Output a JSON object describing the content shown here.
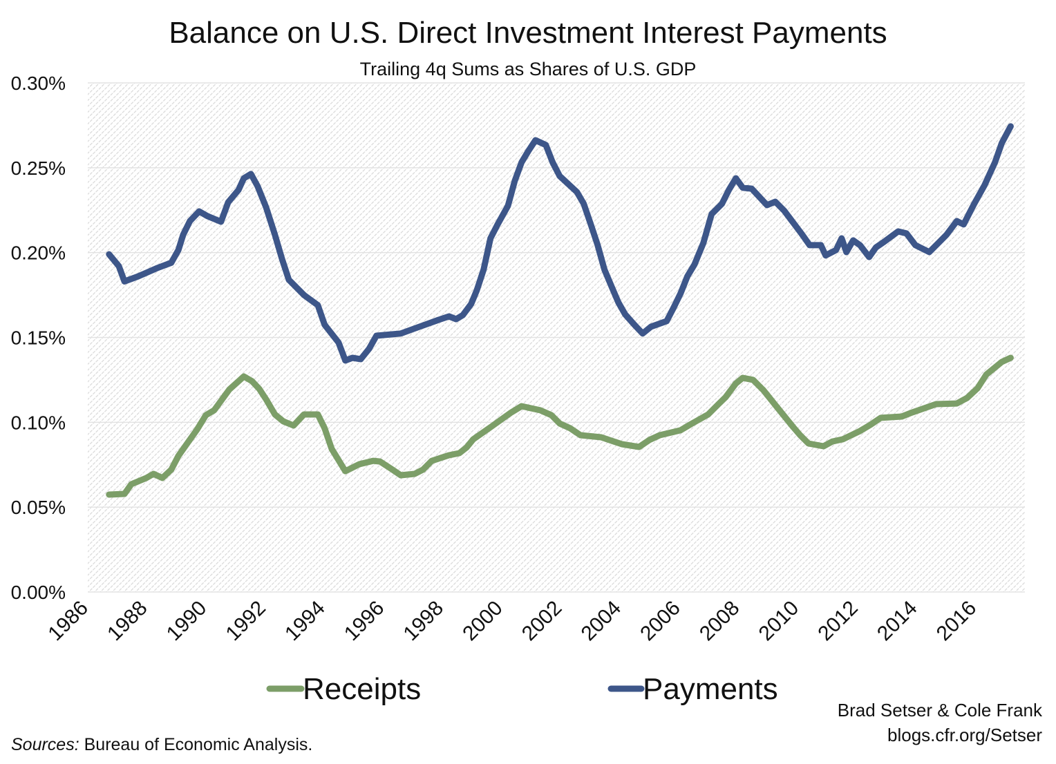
{
  "chart_data": {
    "type": "line",
    "title": "Balance on U.S. Direct Investment Interest Payments",
    "subtitle": "Trailing 4q Sums as Shares of U.S. GDP",
    "xlabel": "",
    "ylabel": "",
    "xlim": [
      1986,
      2017.65
    ],
    "ylim": [
      0,
      0.3
    ],
    "x_ticks": [
      1986,
      1988,
      1990,
      1992,
      1994,
      1996,
      1998,
      2000,
      2002,
      2004,
      2006,
      2008,
      2010,
      2012,
      2014,
      2016
    ],
    "y_ticks": [
      "0.00%",
      "0.05%",
      "0.10%",
      "0.15%",
      "0.20%",
      "0.25%",
      "0.30%"
    ],
    "y_tick_values": [
      0,
      0.05,
      0.1,
      0.15,
      0.2,
      0.25,
      0.3
    ],
    "grid": "horizontal",
    "legend_position": "bottom",
    "series": [
      {
        "name": "Receipts",
        "color": "#7c9e68",
        "x": [
          1986.72,
          1987.24,
          1987.47,
          1987.98,
          1988.22,
          1988.52,
          1988.82,
          1989.06,
          1989.34,
          1989.69,
          1989.99,
          1990.27,
          1990.78,
          1991.27,
          1991.55,
          1991.79,
          1992.02,
          1992.32,
          1992.6,
          1992.95,
          1993.3,
          1993.77,
          1994.0,
          1994.24,
          1994.7,
          1995.17,
          1995.64,
          1995.87,
          1996.22,
          1996.57,
          1997.04,
          1997.32,
          1997.62,
          1998.2,
          1998.55,
          1998.79,
          1999.02,
          1999.65,
          2000.3,
          2000.65,
          2001.28,
          2001.66,
          2001.94,
          2002.29,
          2002.64,
          2003.34,
          2004.04,
          2004.62,
          2004.97,
          2005.32,
          2006.02,
          2006.37,
          2006.95,
          2007.3,
          2007.54,
          2007.89,
          2008.12,
          2008.47,
          2008.82,
          2009.29,
          2009.82,
          2010.06,
          2010.34,
          2010.85,
          2011.15,
          2011.5,
          2012.08,
          2012.43,
          2012.78,
          2013.49,
          2013.84,
          2014.65,
          2015.35,
          2015.7,
          2016.05,
          2016.35,
          2016.87,
          2017.17
        ],
        "y": [
          0.0574,
          0.0578,
          0.0635,
          0.0672,
          0.0696,
          0.0672,
          0.0721,
          0.0802,
          0.0871,
          0.0957,
          0.1042,
          0.1071,
          0.1193,
          0.127,
          0.1242,
          0.1197,
          0.1136,
          0.1046,
          0.1006,
          0.0981,
          0.1046,
          0.1046,
          0.0965,
          0.0843,
          0.0712,
          0.0753,
          0.0773,
          0.0769,
          0.0729,
          0.0688,
          0.0696,
          0.0721,
          0.0773,
          0.0806,
          0.0818,
          0.0851,
          0.09,
          0.0977,
          0.1058,
          0.1095,
          0.1071,
          0.1042,
          0.0993,
          0.0965,
          0.0924,
          0.0912,
          0.0871,
          0.0855,
          0.0896,
          0.0924,
          0.0953,
          0.0989,
          0.1046,
          0.1107,
          0.1148,
          0.1229,
          0.1262,
          0.125,
          0.1189,
          0.1087,
          0.0973,
          0.0924,
          0.0875,
          0.0859,
          0.0887,
          0.09,
          0.0949,
          0.0985,
          0.1026,
          0.1034,
          0.1058,
          0.1107,
          0.1111,
          0.1144,
          0.1201,
          0.1282,
          0.1356,
          0.138
        ]
      },
      {
        "name": "Payments",
        "color": "#3d5689",
        "x": [
          1986.72,
          1987.05,
          1987.24,
          1987.7,
          1988.36,
          1988.82,
          1989.06,
          1989.22,
          1989.45,
          1989.76,
          1990.04,
          1990.5,
          1990.74,
          1991.09,
          1991.27,
          1991.51,
          1991.74,
          1992.02,
          1992.32,
          1992.56,
          1992.79,
          1993.3,
          1993.77,
          1994.0,
          1994.47,
          1994.7,
          1994.94,
          1995.22,
          1995.5,
          1995.75,
          1996.57,
          1997.15,
          1997.85,
          1998.2,
          1998.44,
          1998.67,
          1998.95,
          1999.14,
          1999.37,
          1999.6,
          1999.84,
          2000.19,
          2000.42,
          2000.65,
          2000.89,
          2001.12,
          2001.47,
          2001.7,
          2001.94,
          2002.52,
          2002.75,
          2002.99,
          2003.22,
          2003.45,
          2003.69,
          2003.92,
          2004.15,
          2004.46,
          2004.74,
          2005.02,
          2005.55,
          2005.79,
          2006.02,
          2006.25,
          2006.49,
          2006.79,
          2007.07,
          2007.42,
          2007.65,
          2007.89,
          2008.12,
          2008.42,
          2008.94,
          2009.22,
          2009.52,
          2010.1,
          2010.38,
          2010.76,
          2010.92,
          2011.27,
          2011.46,
          2011.62,
          2011.85,
          2012.08,
          2012.39,
          2012.62,
          2012.9,
          2013.37,
          2013.65,
          2013.95,
          2014.42,
          2014.77,
          2015.0,
          2015.35,
          2015.58,
          2015.94,
          2016.29,
          2016.64,
          2016.87,
          2017.17
        ],
        "y": [
          0.199,
          0.192,
          0.183,
          0.186,
          0.191,
          0.194,
          0.2015,
          0.2105,
          0.2186,
          0.2243,
          0.2215,
          0.2182,
          0.2296,
          0.2369,
          0.2438,
          0.2463,
          0.239,
          0.2268,
          0.2105,
          0.1962,
          0.184,
          0.175,
          0.169,
          0.1575,
          0.147,
          0.1364,
          0.138,
          0.1372,
          0.1433,
          0.151,
          0.1523,
          0.156,
          0.1604,
          0.1624,
          0.1608,
          0.1632,
          0.1698,
          0.1779,
          0.19,
          0.2084,
          0.2166,
          0.2276,
          0.2422,
          0.2532,
          0.2601,
          0.2662,
          0.2634,
          0.2532,
          0.2451,
          0.2357,
          0.2288,
          0.2166,
          0.2044,
          0.19,
          0.18,
          0.1706,
          0.1636,
          0.1575,
          0.1523,
          0.1563,
          0.1596,
          0.1677,
          0.1759,
          0.186,
          0.193,
          0.2056,
          0.2227,
          0.2288,
          0.2369,
          0.2438,
          0.2382,
          0.2377,
          0.228,
          0.23,
          0.2247,
          0.2113,
          0.2044,
          0.2044,
          0.1983,
          0.2015,
          0.2084,
          0.2003,
          0.2072,
          0.2044,
          0.1974,
          0.2031,
          0.2064,
          0.2125,
          0.2113,
          0.2044,
          0.2003,
          0.2064,
          0.2105,
          0.2186,
          0.2166,
          0.2288,
          0.2398,
          0.2532,
          0.2646,
          0.2744
        ]
      }
    ]
  },
  "credits": {
    "authors": "Brad Setser & Cole Frank",
    "blog": "blogs.cfr.org/Setser",
    "sources_label": "Sources:",
    "sources_text": " Bureau of Economic Analysis."
  }
}
